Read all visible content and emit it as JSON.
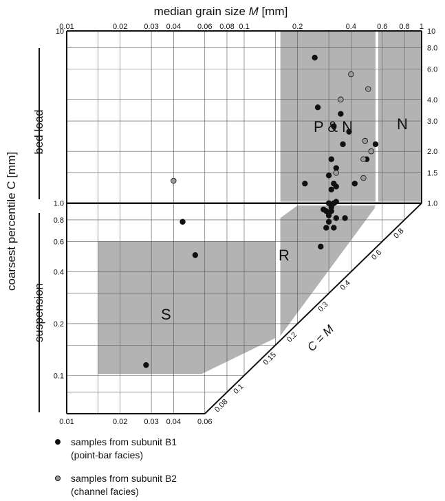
{
  "chart_data": {
    "type": "scatter",
    "xlabel": "median grain size M [mm]",
    "ylabel": "coarsest percentile C [mm]",
    "diag_label": "C = M",
    "xscale": "log",
    "yscale": "log",
    "xlim": [
      0.01,
      1
    ],
    "ylim": [
      0.06,
      10
    ],
    "x_ticks_top": [
      "0.01",
      "0.02",
      "0.03",
      "0.04",
      "0.06",
      "0.08",
      "0.1",
      "0.2",
      "0.4",
      "0.6",
      "0.8",
      "1"
    ],
    "x_ticks_bottom": [
      "0.01",
      "0.02",
      "0.03",
      "0.04",
      "0.06"
    ],
    "y_ticks_left": [
      "10",
      "1.0",
      "0.8",
      "0.6",
      "0.4",
      "0.2",
      "0.1"
    ],
    "y_ticks_right": [
      "10",
      "8.0",
      "6.0",
      "4.0",
      "3.0",
      "2.0",
      "1.5",
      "1.0"
    ],
    "diag_ticks": [
      "0.08",
      "0.1",
      "0.15",
      "0.2",
      "0.3",
      "0.4",
      "0.6",
      "0.8"
    ],
    "side_labels": {
      "upper": "bed load",
      "lower": "suspension"
    },
    "regions": [
      "S",
      "R",
      "P & N",
      "N"
    ],
    "series": [
      {
        "name": "samples from subunit B1",
        "name_sub": "(point-bar facies)",
        "color": "#111111",
        "points": [
          [
            0.25,
            7.0
          ],
          [
            0.26,
            3.6
          ],
          [
            0.35,
            3.3
          ],
          [
            0.32,
            2.8
          ],
          [
            0.36,
            2.2
          ],
          [
            0.31,
            1.8
          ],
          [
            0.49,
            1.8
          ],
          [
            0.55,
            2.2
          ],
          [
            0.39,
            2.6
          ],
          [
            0.33,
            1.6
          ],
          [
            0.3,
            1.45
          ],
          [
            0.22,
            1.3
          ],
          [
            0.42,
            1.3
          ],
          [
            0.32,
            1.3
          ],
          [
            0.31,
            1.2
          ],
          [
            0.33,
            1.25
          ],
          [
            0.3,
            1.0
          ],
          [
            0.32,
            1.0
          ],
          [
            0.33,
            1.02
          ],
          [
            0.31,
            0.95
          ],
          [
            0.28,
            0.92
          ],
          [
            0.29,
            0.9
          ],
          [
            0.31,
            0.9
          ],
          [
            0.3,
            0.85
          ],
          [
            0.33,
            0.82
          ],
          [
            0.37,
            0.82
          ],
          [
            0.3,
            0.78
          ],
          [
            0.29,
            0.72
          ],
          [
            0.32,
            0.72
          ],
          [
            0.27,
            0.56
          ],
          [
            0.053,
            0.5
          ],
          [
            0.045,
            0.78
          ],
          [
            0.028,
            0.115
          ]
        ]
      },
      {
        "name": "samples from subunit B2",
        "name_sub": "(channel facies)",
        "color": "#9a9a9a",
        "points": [
          [
            0.4,
            5.6
          ],
          [
            0.5,
            4.6
          ],
          [
            0.35,
            4.0
          ],
          [
            0.48,
            2.3
          ],
          [
            0.52,
            2.0
          ],
          [
            0.47,
            1.8
          ],
          [
            0.47,
            1.4
          ],
          [
            0.33,
            1.5
          ],
          [
            0.04,
            1.35
          ]
        ]
      }
    ]
  }
}
